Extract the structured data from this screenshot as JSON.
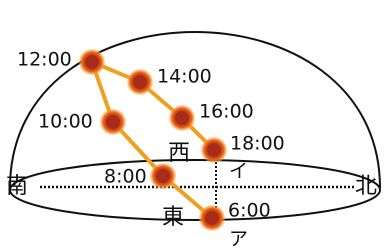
{
  "directions": {
    "south": "南",
    "north": "北",
    "west": "西",
    "east": "東"
  },
  "sun_positions": [
    {
      "time": "6:00"
    },
    {
      "time": "8:00"
    },
    {
      "time": "10:00"
    },
    {
      "time": "12:00"
    },
    {
      "time": "14:00"
    },
    {
      "time": "16:00"
    },
    {
      "time": "18:00"
    }
  ],
  "points": {
    "a": "ア",
    "i": "イ"
  }
}
